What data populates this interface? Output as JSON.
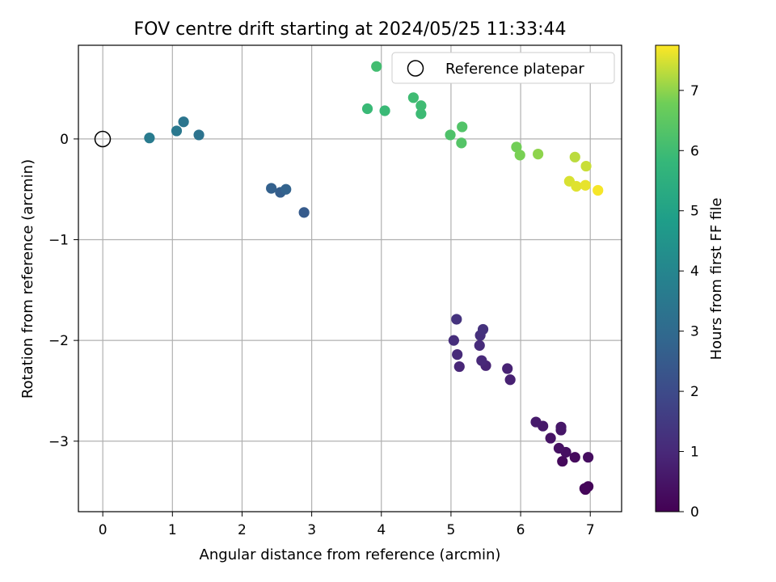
{
  "chart_data": {
    "type": "scatter",
    "title": "FOV centre drift starting at 2024/05/25 11:33:44",
    "xlabel": "Angular distance from reference (arcmin)",
    "ylabel": "Rotation from reference (arcmin)",
    "xlim": [
      -0.35,
      7.45
    ],
    "ylim": [
      -3.7,
      0.93
    ],
    "xticks": [
      0,
      1,
      2,
      3,
      4,
      5,
      6,
      7
    ],
    "yticks": [
      0,
      -1,
      -2,
      -3
    ],
    "ytick_labels": [
      "0",
      "−1",
      "−2",
      "−3"
    ],
    "grid": true,
    "legend": {
      "location": "top-right",
      "entries": [
        "Reference platepar"
      ]
    },
    "reference_point": {
      "name": "Reference platepar",
      "x": 0,
      "y": 0,
      "marker": "open circle"
    },
    "colorbar": {
      "label": "Hours from first FF file",
      "colormap": "viridis",
      "range": [
        0,
        7.75
      ],
      "ticks": [
        0,
        1,
        2,
        3,
        4,
        5,
        6,
        7
      ]
    },
    "points": [
      {
        "x": 6.93,
        "y": -3.48,
        "hours": 0.05
      },
      {
        "x": 6.97,
        "y": -3.45,
        "hours": 0.1
      },
      {
        "x": 6.92,
        "y": -3.47,
        "hours": 0.15
      },
      {
        "x": 6.6,
        "y": -3.2,
        "hours": 0.2
      },
      {
        "x": 6.78,
        "y": -3.16,
        "hours": 0.25
      },
      {
        "x": 6.97,
        "y": -3.16,
        "hours": 0.3
      },
      {
        "x": 6.65,
        "y": -3.11,
        "hours": 0.35
      },
      {
        "x": 6.55,
        "y": -3.07,
        "hours": 0.4
      },
      {
        "x": 6.43,
        "y": -2.97,
        "hours": 0.45
      },
      {
        "x": 6.58,
        "y": -2.89,
        "hours": 0.5
      },
      {
        "x": 6.58,
        "y": -2.86,
        "hours": 0.55
      },
      {
        "x": 6.32,
        "y": -2.85,
        "hours": 0.6
      },
      {
        "x": 6.22,
        "y": -2.81,
        "hours": 0.65
      },
      {
        "x": 5.85,
        "y": -2.39,
        "hours": 0.8
      },
      {
        "x": 5.81,
        "y": -2.28,
        "hours": 0.85
      },
      {
        "x": 5.5,
        "y": -2.25,
        "hours": 0.9
      },
      {
        "x": 5.12,
        "y": -2.26,
        "hours": 0.95
      },
      {
        "x": 5.44,
        "y": -2.2,
        "hours": 1.0
      },
      {
        "x": 5.09,
        "y": -2.14,
        "hours": 1.05
      },
      {
        "x": 5.41,
        "y": -2.05,
        "hours": 1.1
      },
      {
        "x": 5.04,
        "y": -2.0,
        "hours": 1.15
      },
      {
        "x": 5.42,
        "y": -1.95,
        "hours": 1.2
      },
      {
        "x": 5.46,
        "y": -1.89,
        "hours": 1.25
      },
      {
        "x": 5.08,
        "y": -1.79,
        "hours": 1.3
      },
      {
        "x": 2.89,
        "y": -0.73,
        "hours": 2.5
      },
      {
        "x": 2.55,
        "y": -0.53,
        "hours": 2.6
      },
      {
        "x": 2.42,
        "y": -0.49,
        "hours": 2.7
      },
      {
        "x": 2.63,
        "y": -0.5,
        "hours": 2.75
      },
      {
        "x": 1.38,
        "y": 0.04,
        "hours": 3.3
      },
      {
        "x": 1.16,
        "y": 0.17,
        "hours": 3.4
      },
      {
        "x": 1.06,
        "y": 0.08,
        "hours": 3.5
      },
      {
        "x": 0.67,
        "y": 0.01,
        "hours": 3.6
      },
      {
        "x": 3.8,
        "y": 0.3,
        "hours": 5.9
      },
      {
        "x": 4.05,
        "y": 0.28,
        "hours": 5.9
      },
      {
        "x": 4.57,
        "y": 0.25,
        "hours": 5.95
      },
      {
        "x": 4.57,
        "y": 0.33,
        "hours": 6.0
      },
      {
        "x": 4.46,
        "y": 0.41,
        "hours": 6.0
      },
      {
        "x": 3.93,
        "y": 0.72,
        "hours": 6.05
      },
      {
        "x": 4.99,
        "y": 0.04,
        "hours": 6.25
      },
      {
        "x": 5.16,
        "y": 0.12,
        "hours": 6.3
      },
      {
        "x": 5.15,
        "y": -0.04,
        "hours": 6.35
      },
      {
        "x": 5.94,
        "y": -0.08,
        "hours": 6.8
      },
      {
        "x": 5.99,
        "y": -0.16,
        "hours": 6.85
      },
      {
        "x": 6.25,
        "y": -0.15,
        "hours": 7.0
      },
      {
        "x": 6.78,
        "y": -0.18,
        "hours": 7.3
      },
      {
        "x": 6.94,
        "y": -0.27,
        "hours": 7.4
      },
      {
        "x": 6.7,
        "y": -0.42,
        "hours": 7.5
      },
      {
        "x": 6.8,
        "y": -0.47,
        "hours": 7.55
      },
      {
        "x": 6.93,
        "y": -0.46,
        "hours": 7.6
      },
      {
        "x": 7.11,
        "y": -0.51,
        "hours": 7.7
      }
    ]
  }
}
